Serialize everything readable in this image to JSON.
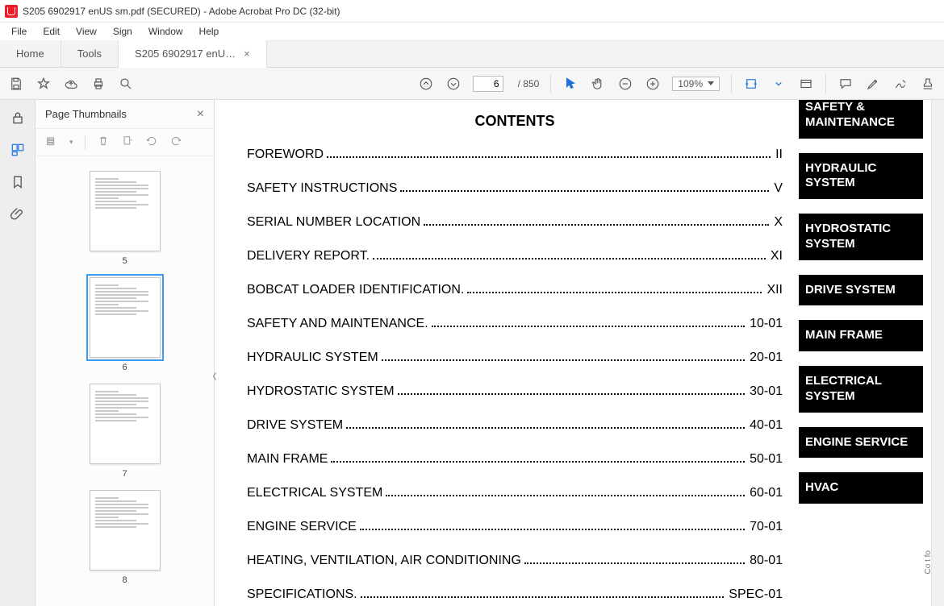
{
  "window": {
    "title": "S205 6902917 enUS sm.pdf (SECURED) - Adobe Acrobat Pro DC (32-bit)"
  },
  "menu": [
    "File",
    "Edit",
    "View",
    "Sign",
    "Window",
    "Help"
  ],
  "tabs": {
    "home": "Home",
    "tools": "Tools",
    "doc": "S205 6902917 enU…"
  },
  "toolbar": {
    "current_page": "6",
    "total_pages": "850",
    "zoom": "109%"
  },
  "thumbs": {
    "title": "Page Thumbnails",
    "pages": [
      "5",
      "6",
      "7",
      "8"
    ],
    "selected_index": 1
  },
  "contents": {
    "heading": "CONTENTS",
    "rows": [
      {
        "label": "FOREWORD",
        "page": "II"
      },
      {
        "label": "SAFETY INSTRUCTIONS",
        "page": "V"
      },
      {
        "label": "SERIAL NUMBER LOCATION",
        "page": "X"
      },
      {
        "label": "DELIVERY REPORT.",
        "page": "XI"
      },
      {
        "label": "BOBCAT LOADER IDENTIFICATION.",
        "page": "XII"
      },
      {
        "label": "SAFETY AND MAINTENANCE.",
        "page": "10-01"
      },
      {
        "label": "HYDRAULIC SYSTEM",
        "page": "20-01"
      },
      {
        "label": "HYDROSTATIC SYSTEM",
        "page": "30-01"
      },
      {
        "label": "DRIVE SYSTEM",
        "page": "40-01"
      },
      {
        "label": "MAIN FRAME",
        "page": "50-01"
      },
      {
        "label": "ELECTRICAL SYSTEM",
        "page": "60-01"
      },
      {
        "label": "ENGINE SERVICE",
        "page": "70-01"
      },
      {
        "label": "HEATING, VENTILATION, AIR CONDITIONING",
        "page": "80-01"
      },
      {
        "label": "SPECIFICATIONS.",
        "page": "SPEC-01"
      }
    ]
  },
  "side_tabs": [
    "SAFETY & MAINTENANCE",
    "HYDRAULIC SYSTEM",
    "HYDROSTATIC SYSTEM",
    "DRIVE SYSTEM",
    "MAIN FRAME",
    "ELECTRICAL SYSTEM",
    "ENGINE SERVICE",
    "HVAC"
  ],
  "vtext": "Co    t fo"
}
